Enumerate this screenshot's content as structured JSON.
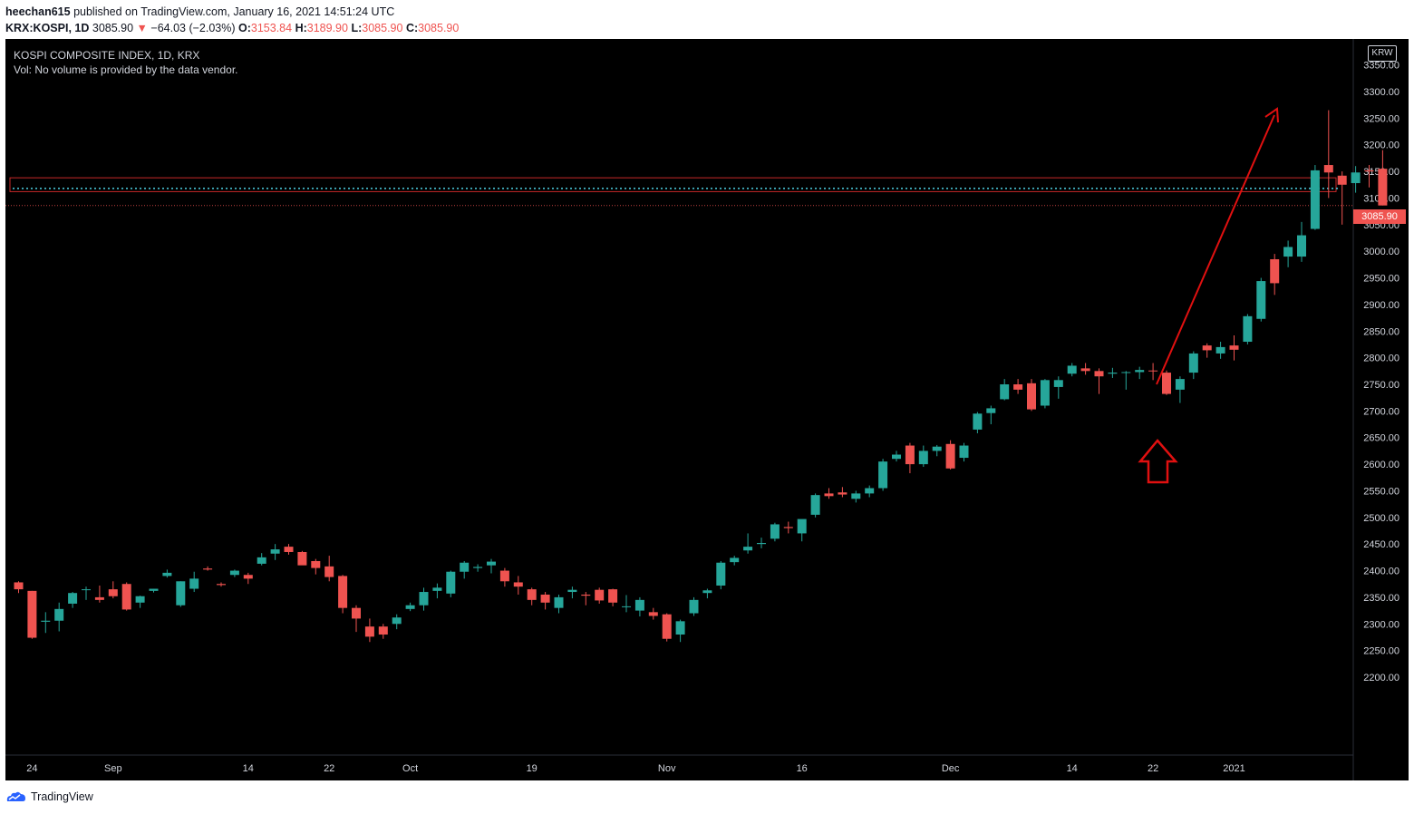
{
  "header": {
    "publisher": "heechan615",
    "published_text": "published on TradingView.com, January 16, 2021 14:51:24 UTC",
    "symbol": "KRX:KOSPI, 1D",
    "last": "3085.90",
    "change": "−64.03 (−2.03%)",
    "o_label": "O:",
    "o": "3153.84",
    "h_label": "H:",
    "h": "3189.90",
    "l_label": "L:",
    "l": "3085.90",
    "c_label": "C:",
    "c": "3085.90"
  },
  "legend": {
    "title": "KOSPI COMPOSITE INDEX, 1D, KRX",
    "vol": "Vol: No volume is provided by the data vendor."
  },
  "currency": "KRW",
  "price_tag": "3085.90",
  "footer": {
    "brand": "TradingView"
  },
  "colors": {
    "up": "#26a69a",
    "down": "#ef5350",
    "bg": "#000000",
    "axis_text": "#d1d4dc",
    "annotation": "#e01010",
    "dotted_line": "#4dd0e1"
  },
  "chart_data": {
    "type": "candlestick",
    "title": "KOSPI COMPOSITE INDEX, 1D, KRX",
    "ylim": [
      2150,
      3380
    ],
    "y_ticks": [
      2200,
      2250,
      2300,
      2350,
      2400,
      2450,
      2500,
      2550,
      2600,
      2650,
      2700,
      2750,
      2800,
      2850,
      2900,
      2950,
      3000,
      3050,
      3100,
      3150,
      3200,
      3250,
      3300,
      3350
    ],
    "x_ticks": [
      {
        "label": "24",
        "day": 1
      },
      {
        "label": "Sep",
        "day": 7
      },
      {
        "label": "14",
        "day": 17
      },
      {
        "label": "22",
        "day": 23
      },
      {
        "label": "Oct",
        "day": 29
      },
      {
        "label": "19",
        "day": 38
      },
      {
        "label": "Nov",
        "day": 48
      },
      {
        "label": "16",
        "day": 58
      },
      {
        "label": "Dec",
        "day": 69
      },
      {
        "label": "14",
        "day": 78
      },
      {
        "label": "22",
        "day": 84
      },
      {
        "label": "2021",
        "day": 90
      }
    ],
    "candles": [
      [
        2378,
        2380,
        2358,
        2365
      ],
      [
        2362,
        2362,
        2272,
        2274
      ],
      [
        2304,
        2322,
        2283,
        2306
      ],
      [
        2306,
        2340,
        2286,
        2328
      ],
      [
        2338,
        2360,
        2330,
        2358
      ],
      [
        2365,
        2370,
        2345,
        2365
      ],
      [
        2350,
        2372,
        2340,
        2345
      ],
      [
        2365,
        2380,
        2348,
        2352
      ],
      [
        2375,
        2378,
        2325,
        2327
      ],
      [
        2340,
        2353,
        2330,
        2352
      ],
      [
        2362,
        2366,
        2359,
        2366
      ],
      [
        2390,
        2402,
        2387,
        2396
      ],
      [
        2335,
        2380,
        2332,
        2380
      ],
      [
        2366,
        2398,
        2360,
        2385
      ],
      [
        2404,
        2408,
        2400,
        2402
      ],
      [
        2375,
        2378,
        2370,
        2373
      ],
      [
        2392,
        2402,
        2388,
        2400
      ],
      [
        2392,
        2396,
        2375,
        2385
      ],
      [
        2413,
        2433,
        2410,
        2425
      ],
      [
        2432,
        2450,
        2420,
        2440
      ],
      [
        2445,
        2450,
        2430,
        2435
      ],
      [
        2435,
        2437,
        2412,
        2410
      ],
      [
        2418,
        2422,
        2393,
        2405
      ],
      [
        2408,
        2428,
        2380,
        2388
      ],
      [
        2390,
        2392,
        2320,
        2330
      ],
      [
        2330,
        2335,
        2285,
        2310
      ],
      [
        2295,
        2310,
        2266,
        2276
      ],
      [
        2295,
        2300,
        2272,
        2280
      ],
      [
        2300,
        2318,
        2290,
        2312
      ],
      [
        2328,
        2340,
        2324,
        2335
      ],
      [
        2335,
        2368,
        2325,
        2360
      ],
      [
        2362,
        2376,
        2348,
        2368
      ],
      [
        2357,
        2400,
        2350,
        2398
      ],
      [
        2398,
        2418,
        2385,
        2415
      ],
      [
        2405,
        2412,
        2398,
        2407
      ],
      [
        2410,
        2422,
        2395,
        2417
      ],
      [
        2400,
        2405,
        2370,
        2380
      ],
      [
        2378,
        2390,
        2355,
        2370
      ],
      [
        2365,
        2368,
        2335,
        2345
      ],
      [
        2355,
        2360,
        2327,
        2340
      ],
      [
        2330,
        2355,
        2320,
        2350
      ],
      [
        2360,
        2370,
        2348,
        2364
      ],
      [
        2355,
        2360,
        2335,
        2353
      ],
      [
        2364,
        2368,
        2338,
        2344
      ],
      [
        2365,
        2366,
        2333,
        2340
      ],
      [
        2333,
        2354,
        2322,
        2333
      ],
      [
        2325,
        2350,
        2314,
        2345
      ],
      [
        2322,
        2330,
        2308,
        2315
      ],
      [
        2318,
        2320,
        2267,
        2272
      ],
      [
        2280,
        2308,
        2266,
        2305
      ],
      [
        2320,
        2350,
        2315,
        2345
      ],
      [
        2358,
        2366,
        2348,
        2363
      ],
      [
        2372,
        2418,
        2365,
        2415
      ],
      [
        2416,
        2428,
        2410,
        2424
      ],
      [
        2438,
        2470,
        2432,
        2445
      ],
      [
        2450,
        2462,
        2442,
        2452
      ],
      [
        2460,
        2490,
        2455,
        2487
      ],
      [
        2482,
        2492,
        2470,
        2480
      ],
      [
        2470,
        2495,
        2455,
        2497
      ],
      [
        2505,
        2545,
        2500,
        2542
      ],
      [
        2545,
        2555,
        2535,
        2540
      ],
      [
        2547,
        2557,
        2538,
        2543
      ],
      [
        2535,
        2550,
        2528,
        2545
      ],
      [
        2545,
        2560,
        2538,
        2555
      ],
      [
        2555,
        2610,
        2550,
        2605
      ],
      [
        2610,
        2625,
        2605,
        2618
      ],
      [
        2635,
        2640,
        2583,
        2600
      ],
      [
        2600,
        2635,
        2595,
        2625
      ],
      [
        2625,
        2636,
        2615,
        2633
      ],
      [
        2638,
        2645,
        2590,
        2592
      ],
      [
        2612,
        2640,
        2605,
        2635
      ],
      [
        2665,
        2698,
        2658,
        2695
      ],
      [
        2696,
        2710,
        2675,
        2705
      ],
      [
        2722,
        2760,
        2720,
        2750
      ],
      [
        2750,
        2760,
        2732,
        2740
      ],
      [
        2752,
        2760,
        2700,
        2703
      ],
      [
        2710,
        2760,
        2705,
        2758
      ],
      [
        2745,
        2765,
        2723,
        2758
      ],
      [
        2770,
        2790,
        2765,
        2785
      ],
      [
        2780,
        2790,
        2768,
        2775
      ],
      [
        2775,
        2780,
        2732,
        2765
      ],
      [
        2770,
        2781,
        2762,
        2772
      ],
      [
        2772,
        2775,
        2740,
        2773
      ],
      [
        2773,
        2783,
        2760,
        2777
      ],
      [
        2776,
        2790,
        2758,
        2775
      ],
      [
        2772,
        2776,
        2730,
        2732
      ],
      [
        2740,
        2765,
        2715,
        2760
      ],
      [
        2772,
        2812,
        2760,
        2808
      ],
      [
        2823,
        2827,
        2800,
        2814
      ],
      [
        2808,
        2830,
        2798,
        2820
      ],
      [
        2823,
        2842,
        2795,
        2815
      ],
      [
        2830,
        2882,
        2825,
        2878
      ],
      [
        2873,
        2950,
        2868,
        2944
      ],
      [
        2985,
        2995,
        2918,
        2940
      ],
      [
        2990,
        3020,
        2970,
        3008
      ],
      [
        2990,
        3055,
        2980,
        3030
      ],
      [
        3042,
        3162,
        3040,
        3152
      ],
      [
        3162,
        3265,
        3100,
        3148
      ],
      [
        3142,
        3150,
        3050,
        3125
      ],
      [
        3128,
        3160,
        3110,
        3148
      ],
      [
        3152,
        3162,
        3120,
        3150
      ],
      [
        3155,
        3190,
        3086,
        3086
      ]
    ],
    "annotations": {
      "resistance_box": [
        3112,
        3138
      ],
      "dotted_level": 3118,
      "last_price": 3085.9
    }
  }
}
